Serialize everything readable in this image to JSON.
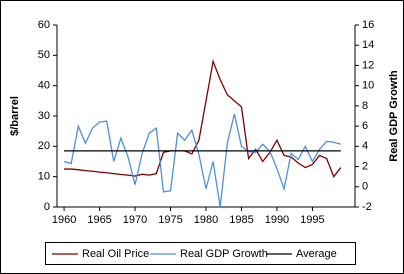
{
  "chart_data": {
    "type": "line",
    "x": [
      1960,
      1961,
      1962,
      1963,
      1964,
      1965,
      1966,
      1967,
      1968,
      1969,
      1970,
      1971,
      1972,
      1973,
      1974,
      1975,
      1976,
      1977,
      1978,
      1979,
      1980,
      1981,
      1982,
      1983,
      1984,
      1985,
      1986,
      1987,
      1988,
      1989,
      1990,
      1991,
      1992,
      1993,
      1994,
      1995,
      1996,
      1997,
      1998,
      1999
    ],
    "xlim": [
      1959,
      2001
    ],
    "xticks": [
      1960,
      1965,
      1970,
      1975,
      1980,
      1985,
      1990,
      1995
    ],
    "ylabel": "$/barrel",
    "ylim": [
      0,
      60
    ],
    "yticks": [
      0,
      10,
      20,
      30,
      40,
      50,
      60
    ],
    "y2label": "Real GDP Growth",
    "y2lim": [
      -2,
      16
    ],
    "y2ticks": [
      -2,
      0,
      2,
      4,
      6,
      8,
      10,
      12,
      14,
      16
    ],
    "legend": "bottom",
    "series": [
      {
        "name": "Real Oil Price",
        "color": "#800000",
        "values": [
          12.5,
          12.5,
          12.3,
          12,
          11.8,
          11.5,
          11.3,
          11,
          10.7,
          10.5,
          10.2,
          10.8,
          10.5,
          11,
          18,
          18.5,
          18.5,
          18.5,
          17.5,
          22,
          35,
          48,
          42,
          37,
          35,
          33,
          16,
          19,
          15,
          18,
          22,
          17,
          16.5,
          14.5,
          13,
          14,
          17,
          16,
          10,
          13
        ]
      },
      {
        "name": "Real GDP Growth",
        "color": "#4f8fe0",
        "axis": "y2",
        "values": [
          2.5,
          2.3,
          6,
          4.3,
          5.8,
          6.4,
          6.5,
          2.5,
          4.8,
          3,
          0.2,
          3.3,
          5.3,
          5.8,
          -0.5,
          -0.4,
          5.3,
          4.6,
          5.6,
          3.2,
          -0.2,
          2.5,
          -2,
          4.3,
          7.2,
          4,
          3.5,
          3.4,
          4.2,
          3.5,
          1.8,
          -0.2,
          3.3,
          2.7,
          4,
          2.5,
          3.7,
          4.5,
          4.4,
          4.2
        ]
      },
      {
        "name": "Average",
        "color": "#000000",
        "values": [
          18.5,
          18.5,
          18.5,
          18.5,
          18.5,
          18.5,
          18.5,
          18.5,
          18.5,
          18.5,
          18.5,
          18.5,
          18.5,
          18.5,
          18.5,
          18.5,
          18.5,
          18.5,
          18.5,
          18.5,
          18.5,
          18.5,
          18.5,
          18.5,
          18.5,
          18.5,
          18.5,
          18.5,
          18.5,
          18.5,
          18.5,
          18.5,
          18.5,
          18.5,
          18.5,
          18.5,
          18.5,
          18.5,
          18.5,
          18.5
        ]
      }
    ]
  }
}
